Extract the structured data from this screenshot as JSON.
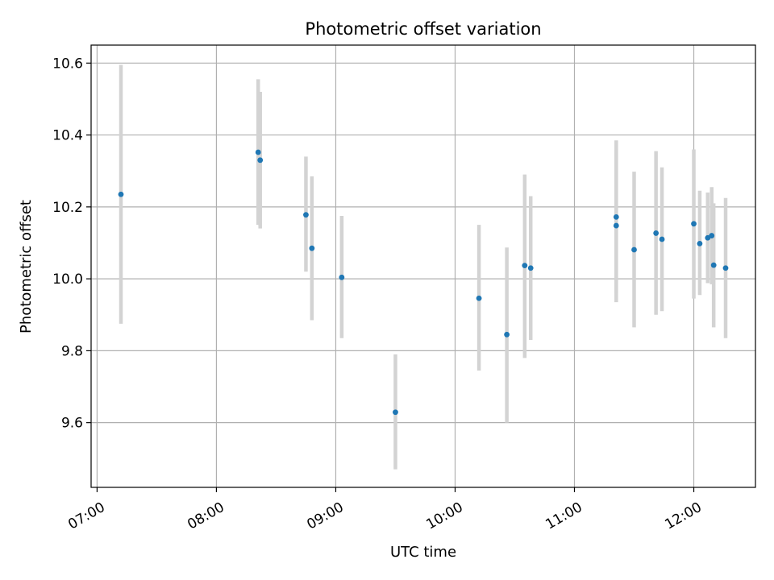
{
  "chart_data": {
    "type": "scatter",
    "title": "Photometric offset variation",
    "xlabel": "UTC time",
    "ylabel": "Photometric offset",
    "grid": true,
    "colors": {
      "point": "#1f77b4",
      "errorbar": "#d3d3d3",
      "grid": "#b0b0b0"
    },
    "x_ticks": [
      "07:00",
      "08:00",
      "09:00",
      "10:00",
      "11:00",
      "12:00"
    ],
    "y_ticks": [
      "9.6",
      "9.8",
      "10.0",
      "10.2",
      "10.4",
      "10.6"
    ],
    "x_unit": "hours UTC",
    "xlim": [
      "06:57",
      "12:31"
    ],
    "ylim": [
      9.42,
      10.65
    ],
    "series": [
      {
        "points": [
          {
            "x": "07:12",
            "y": 10.235,
            "lo": 9.875,
            "hi": 10.595
          },
          {
            "x": "08:21",
            "y": 10.352,
            "lo": 10.15,
            "hi": 10.555
          },
          {
            "x": "08:22",
            "y": 10.33,
            "lo": 10.14,
            "hi": 10.52
          },
          {
            "x": "08:45",
            "y": 10.178,
            "lo": 10.02,
            "hi": 10.34
          },
          {
            "x": "08:48",
            "y": 10.085,
            "lo": 9.885,
            "hi": 10.285
          },
          {
            "x": "09:03",
            "y": 10.004,
            "lo": 9.835,
            "hi": 10.175
          },
          {
            "x": "09:30",
            "y": 9.629,
            "lo": 9.47,
            "hi": 9.79
          },
          {
            "x": "10:12",
            "y": 9.946,
            "lo": 9.745,
            "hi": 10.15
          },
          {
            "x": "10:26",
            "y": 9.845,
            "lo": 9.6,
            "hi": 10.087
          },
          {
            "x": "10:35",
            "y": 10.037,
            "lo": 9.78,
            "hi": 10.29
          },
          {
            "x": "10:38",
            "y": 10.03,
            "lo": 9.83,
            "hi": 10.23
          },
          {
            "x": "11:21",
            "y": 10.172,
            "lo": 9.96,
            "hi": 10.385
          },
          {
            "x": "11:21",
            "y": 10.148,
            "lo": 9.935,
            "hi": 10.36
          },
          {
            "x": "11:30",
            "y": 10.081,
            "lo": 9.865,
            "hi": 10.298
          },
          {
            "x": "11:41",
            "y": 10.127,
            "lo": 9.9,
            "hi": 10.355
          },
          {
            "x": "11:44",
            "y": 10.11,
            "lo": 9.91,
            "hi": 10.31
          },
          {
            "x": "12:00",
            "y": 10.153,
            "lo": 9.945,
            "hi": 10.36
          },
          {
            "x": "12:03",
            "y": 10.098,
            "lo": 9.955,
            "hi": 10.245
          },
          {
            "x": "12:07",
            "y": 10.114,
            "lo": 9.988,
            "hi": 10.24
          },
          {
            "x": "12:09",
            "y": 10.12,
            "lo": 9.985,
            "hi": 10.255
          },
          {
            "x": "12:10",
            "y": 10.038,
            "lo": 9.865,
            "hi": 10.21
          },
          {
            "x": "12:16",
            "y": 10.03,
            "lo": 9.835,
            "hi": 10.225
          }
        ]
      }
    ]
  }
}
